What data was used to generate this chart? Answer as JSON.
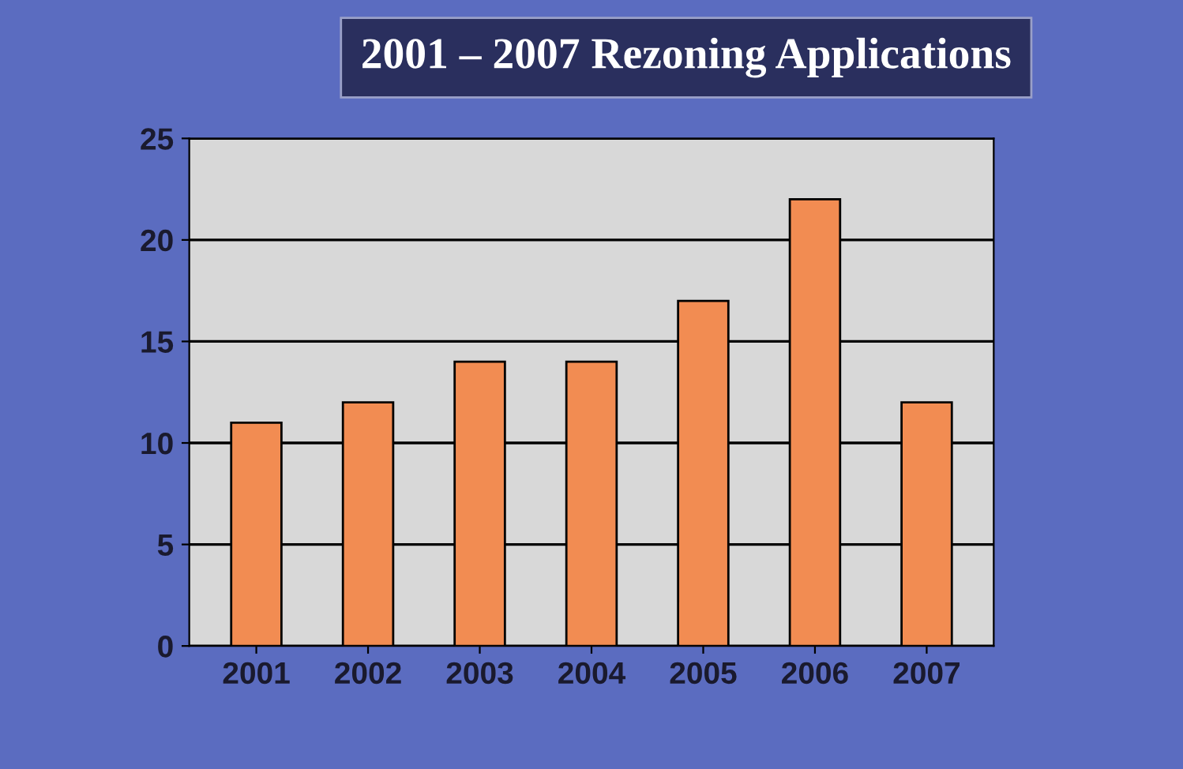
{
  "chart_data": {
    "type": "bar",
    "title": "2001 – 2007 Rezoning Applications",
    "categories": [
      "2001",
      "2002",
      "2003",
      "2004",
      "2005",
      "2006",
      "2007"
    ],
    "values": [
      11,
      12,
      14,
      14,
      17,
      22,
      12
    ],
    "color": "#f28c52",
    "ylim": [
      0,
      25
    ],
    "yticks": [
      0,
      5,
      10,
      15,
      20,
      25
    ],
    "grid": "y"
  }
}
